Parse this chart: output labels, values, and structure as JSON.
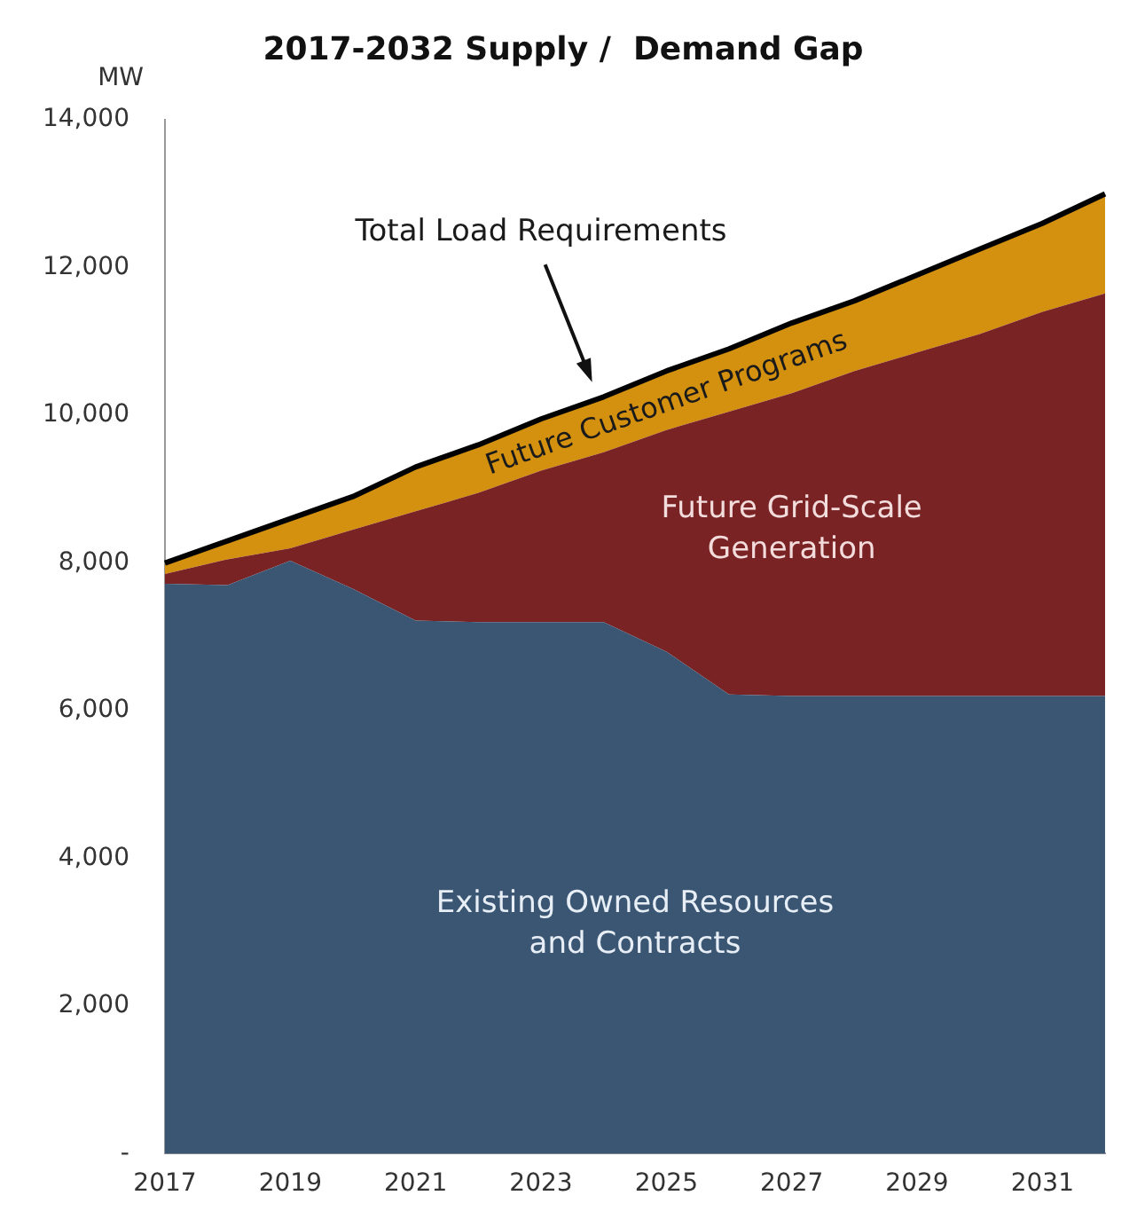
{
  "chart_data": {
    "type": "area",
    "title": "2017-2032 Supply /  Demand Gap",
    "ylabel": "MW",
    "categories": [
      "2017",
      null,
      "2019",
      null,
      "2021",
      null,
      "2023",
      null,
      "2025",
      null,
      "2027",
      null,
      "2029",
      null,
      "2031",
      null
    ],
    "stacked": true,
    "series": [
      {
        "name": "Existing Owned Resources and Contracts",
        "color": "#3b5673",
        "values": [
          7720,
          7700,
          8030,
          7650,
          7220,
          7200,
          7200,
          7200,
          6800,
          6220,
          6200,
          6200,
          6200,
          6200,
          6200,
          6200
        ]
      },
      {
        "name": "Future Grid-Scale Generation",
        "color": "#7a2325",
        "values": [
          130,
          350,
          170,
          800,
          1480,
          1750,
          2050,
          2300,
          3000,
          3830,
          4100,
          4400,
          4650,
          4900,
          5200,
          5450
        ]
      },
      {
        "name": "Future Customer Programs",
        "color": "#d4900f",
        "values": [
          150,
          250,
          400,
          450,
          600,
          650,
          700,
          750,
          800,
          850,
          950,
          950,
          1050,
          1150,
          1200,
          1350
        ]
      }
    ],
    "annotations": [
      "Total Load Requirements"
    ],
    "ylim": [
      0,
      14000
    ],
    "yticks": [
      {
        "value": 0,
        "label": "-"
      },
      {
        "value": 2000,
        "label": "2,000"
      },
      {
        "value": 4000,
        "label": "4,000"
      },
      {
        "value": 6000,
        "label": "6,000"
      },
      {
        "value": 8000,
        "label": "8,000"
      },
      {
        "value": 10000,
        "label": "10,000"
      },
      {
        "value": 12000,
        "label": "12,000"
      },
      {
        "value": 14000,
        "label": "14,000"
      }
    ],
    "grid": false,
    "legend": false
  }
}
